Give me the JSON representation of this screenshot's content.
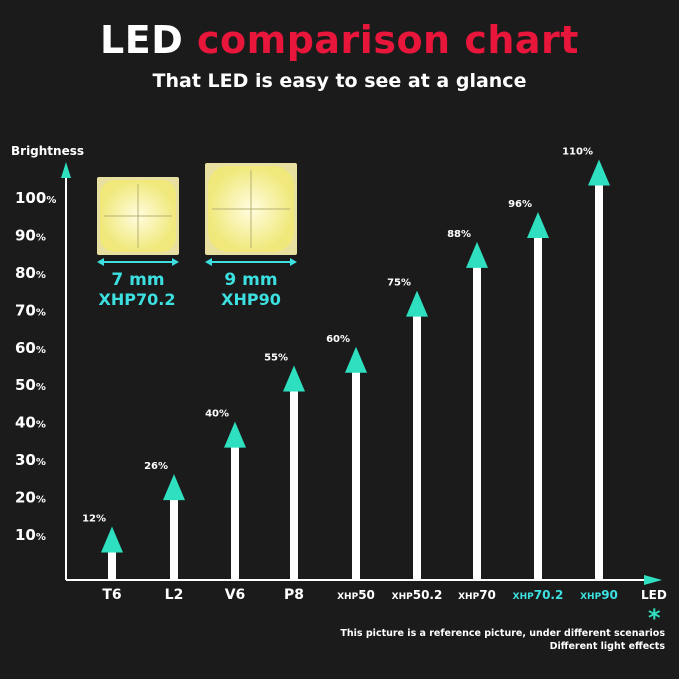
{
  "header": {
    "title_part1": "LED",
    "title_part2": "comparison chart",
    "subtitle": "That LED is easy to see at a glance"
  },
  "colors": {
    "background": "#1b1b1b",
    "accent_red": "#e8163a",
    "arrow_teal": "#2ee0c0",
    "highlight_text": "#3de0e0",
    "bar": "#ffffff"
  },
  "chip_samples": [
    {
      "size": "7 mm",
      "name": "XHP70.2"
    },
    {
      "size": "9 mm",
      "name": "XHP90"
    }
  ],
  "chart_data": {
    "type": "bar",
    "ylabel": "Brightness",
    "xlabel": "LED",
    "ylim": [
      0,
      110
    ],
    "yticks": [
      10,
      20,
      30,
      40,
      50,
      60,
      70,
      80,
      90,
      100
    ],
    "ytick_labels": [
      "10%",
      "20%",
      "30%",
      "40%",
      "50%",
      "60%",
      "70%",
      "80%",
      "90%",
      "100%"
    ],
    "categories": [
      {
        "main": "T6",
        "sub": ""
      },
      {
        "main": "L2",
        "sub": ""
      },
      {
        "main": "V6",
        "sub": ""
      },
      {
        "main": "P8",
        "sub": ""
      },
      {
        "main": "XHP",
        "sub": "50"
      },
      {
        "main": "XHP",
        "sub": "50.2"
      },
      {
        "main": "XHP",
        "sub": "70"
      },
      {
        "main": "XHP",
        "sub": "70.2"
      },
      {
        "main": "XHP",
        "sub": "90"
      }
    ],
    "highlighted_categories": [
      7,
      8
    ],
    "values": [
      12,
      26,
      40,
      55,
      60,
      75,
      88,
      96,
      110
    ],
    "value_labels": [
      "12%",
      "26%",
      "40%",
      "55%",
      "60%",
      "75%",
      "88%",
      "96%",
      "110%"
    ],
    "grid": false
  },
  "footnote": {
    "marker": "*",
    "line1": "This picture is a reference picture, under different scenarios",
    "line2": "Different light effects"
  }
}
